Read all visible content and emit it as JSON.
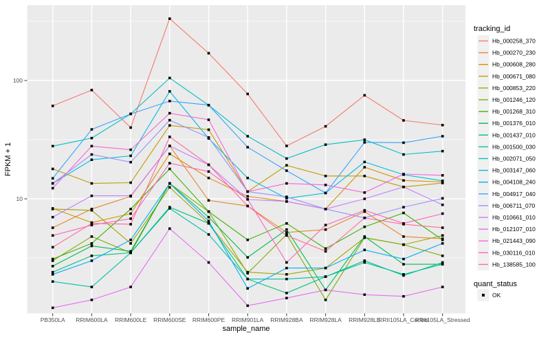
{
  "figure": {
    "background": "#FFFFFF",
    "panel_background": "#EBEBEB",
    "grid_color": "#FFFFFF",
    "tick_color": "#333333",
    "tick_text_color": "#4D4D4D",
    "point_color": "#000000"
  },
  "chart_data": {
    "type": "line",
    "x_label": "sample_name",
    "y_label": "FPKM + 1",
    "y_scale": "log10",
    "y_ticks": [
      10,
      100
    ],
    "y_minor_ticks": [
      3.162,
      31.62,
      316.2
    ],
    "grid": true,
    "marker": "black-square",
    "legend_position": "right",
    "categories": [
      "PB350LA",
      "RRIM600LA",
      "RRIM600LE",
      "RRIM600SE",
      "RRIM600PE",
      "RRIM901LA",
      "RRIM928BA",
      "RRIM928LA",
      "RRIM928LE",
      "RRII105LA_Control",
      "RRII105LA_Stressed"
    ],
    "legend": {
      "color_title": "tracking_id",
      "shape_title": "quant_status",
      "shape_items": [
        {
          "label": "OK"
        }
      ]
    },
    "series": [
      {
        "name": "Hb_000258_370",
        "color": "#F8766D",
        "values": [
          61,
          83,
          40,
          333,
          170,
          77,
          28,
          41,
          75,
          46,
          42
        ]
      },
      {
        "name": "Hb_000270_230",
        "color": "#EA8331",
        "values": [
          5.7,
          8.2,
          10.5,
          28,
          9.7,
          8.7,
          5.2,
          5.5,
          7.8,
          4.8,
          4.6
        ]
      },
      {
        "name": "Hb_000608_280",
        "color": "#D89000",
        "values": [
          8.3,
          6.3,
          7.5,
          24,
          15,
          10.5,
          9.5,
          8.2,
          18.5,
          14.3,
          13.9
        ]
      },
      {
        "name": "Hb_000671_080",
        "color": "#C09B00",
        "values": [
          17.9,
          13.5,
          13.7,
          41.7,
          38.4,
          11.5,
          19.2,
          15.6,
          15.6,
          12.6,
          13.6
        ]
      },
      {
        "name": "Hb_000853_220",
        "color": "#A3A500",
        "values": [
          8.2,
          8.0,
          4.2,
          12.5,
          6.2,
          2.4,
          2.3,
          2.6,
          4.7,
          4.1,
          4.9
        ]
      },
      {
        "name": "Hb_001246_120",
        "color": "#7CAE00",
        "values": [
          3.0,
          4.8,
          3.5,
          13.5,
          7.8,
          2.35,
          5.0,
          1.4,
          4.7,
          4.1,
          3.3
        ]
      },
      {
        "name": "Hb_001268_310",
        "color": "#39B600",
        "values": [
          3.1,
          4.2,
          8.2,
          17.9,
          7.8,
          4.5,
          6.2,
          3.8,
          5.8,
          7.6,
          4.5
        ]
      },
      {
        "name": "Hb_001376_010",
        "color": "#00BB4E",
        "values": [
          2.7,
          4.0,
          3.6,
          13.5,
          7.0,
          3.2,
          5.5,
          1.7,
          4.8,
          2.8,
          2.8
        ]
      },
      {
        "name": "Hb_001437_010",
        "color": "#00BF7D",
        "values": [
          2.4,
          3.3,
          3.5,
          8.5,
          6.2,
          2.1,
          1.6,
          2.2,
          3.0,
          2.25,
          2.9
        ]
      },
      {
        "name": "Hb_001500_030",
        "color": "#00C1A3",
        "values": [
          2.0,
          1.8,
          3.5,
          8.3,
          5.0,
          2.1,
          2.1,
          2.2,
          2.9,
          2.3,
          2.8
        ]
      },
      {
        "name": "Hb_002071_050",
        "color": "#00BFC4",
        "values": [
          27.9,
          32.6,
          52.2,
          105,
          61.8,
          33.8,
          21.9,
          28.7,
          31.6,
          23.7,
          25.3
        ]
      },
      {
        "name": "Hb_003147_060",
        "color": "#00BAE0",
        "values": [
          13.5,
          21.4,
          23.1,
          81,
          32.4,
          15.0,
          10.1,
          11.2,
          20.5,
          16.0,
          14.2
        ]
      },
      {
        "name": "Hb_004108_240",
        "color": "#00B0F6",
        "values": [
          2.3,
          3.0,
          4.5,
          13.5,
          6.5,
          1.75,
          2.6,
          2.6,
          3.7,
          3.1,
          4.2
        ]
      },
      {
        "name": "Hb_004917_040",
        "color": "#35A2FF",
        "values": [
          14.9,
          38.6,
          52.2,
          67,
          62,
          27.3,
          17.3,
          11.2,
          30,
          29.8,
          33.8
        ]
      },
      {
        "name": "Hb_006711_070",
        "color": "#9590FF",
        "values": [
          13.5,
          23.7,
          20.4,
          46.2,
          33,
          11.5,
          10.4,
          8.2,
          6.9,
          8.5,
          10.1
        ]
      },
      {
        "name": "Hb_010661_010",
        "color": "#C77CFF",
        "values": [
          7.0,
          10.6,
          10.6,
          28,
          19.4,
          9.9,
          9.5,
          8.2,
          10.0,
          12.6,
          8.9
        ]
      },
      {
        "name": "Hb_012107_010",
        "color": "#E76BF3",
        "values": [
          1.2,
          1.4,
          1.8,
          5.6,
          2.9,
          1.25,
          1.45,
          1.7,
          1.55,
          1.5,
          1.8
        ]
      },
      {
        "name": "Hb_021443_090",
        "color": "#FA62DB",
        "values": [
          12.3,
          27.9,
          26,
          52.9,
          46.6,
          11.5,
          13.5,
          13.1,
          11.3,
          16.2,
          15.8
        ]
      },
      {
        "name": "Hb_030116_010",
        "color": "#FF62BC",
        "values": [
          4.9,
          6.0,
          6.8,
          20,
          17.0,
          9.9,
          2.9,
          6.0,
          8.0,
          6.2,
          7.5
        ]
      },
      {
        "name": "Hb_138585_100",
        "color": "#FF6A98",
        "values": [
          3.9,
          6.2,
          6.1,
          33.4,
          19.4,
          8.7,
          4.9,
          3.6,
          6.9,
          6.1,
          5.7
        ]
      }
    ]
  }
}
